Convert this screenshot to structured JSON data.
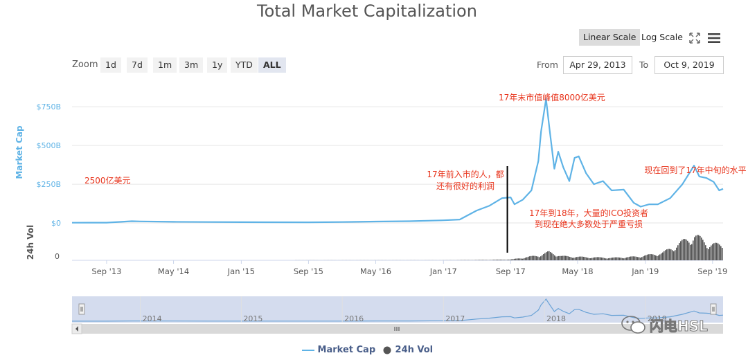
{
  "chart_title": "Total Market Capitalization",
  "scale_buttons": {
    "linear": "Linear Scale",
    "log": "Log Scale"
  },
  "zoom": {
    "label": "Zoom",
    "buttons": [
      "1d",
      "7d",
      "1m",
      "3m",
      "1y",
      "YTD",
      "ALL"
    ],
    "active": "ALL"
  },
  "date_range": {
    "from_label": "From",
    "from_value": "Apr 29, 2013",
    "to_label": "To",
    "to_value": "Oct 9, 2019"
  },
  "legend": {
    "market_cap": "Market Cap",
    "volume": "24h Vol"
  },
  "watermark": "闪电HSL",
  "colors": {
    "market_cap": "#5fb3e6",
    "volume": "#555555",
    "annotation": "#e8341c",
    "navigator_fill": "#ccd6eb"
  },
  "chart_data": {
    "type": "line",
    "title": "Total Market Capitalization",
    "xlabel": "",
    "ylabel": "Market Cap",
    "y2label": "24h Vol",
    "x_ticks": [
      "Sep '13",
      "May '14",
      "Jan '15",
      "Sep '15",
      "May '16",
      "Jan '17",
      "Sep '17",
      "May '18",
      "Jan '19",
      "Sep '19"
    ],
    "y_ticks": [
      "$0",
      "$250B",
      "$500B",
      "$750B"
    ],
    "y2_ticks": [
      "0"
    ],
    "navigator_ticks": [
      "2014",
      "2015",
      "2016",
      "2017",
      "2018",
      "2019"
    ],
    "ylim": [
      0,
      800
    ],
    "series": [
      {
        "name": "Market Cap",
        "unit": "$B",
        "x": [
          "2013-04-29",
          "2013-09-01",
          "2013-12-01",
          "2014-01-01",
          "2014-05-01",
          "2014-09-01",
          "2015-01-01",
          "2015-09-01",
          "2016-01-01",
          "2016-05-01",
          "2016-09-01",
          "2017-01-01",
          "2017-03-01",
          "2017-05-01",
          "2017-06-15",
          "2017-08-01",
          "2017-09-01",
          "2017-09-15",
          "2017-10-15",
          "2017-11-15",
          "2017-12-10",
          "2017-12-20",
          "2018-01-07",
          "2018-01-20",
          "2018-02-06",
          "2018-02-20",
          "2018-03-10",
          "2018-04-01",
          "2018-04-20",
          "2018-05-05",
          "2018-06-01",
          "2018-06-29",
          "2018-08-01",
          "2018-09-01",
          "2018-10-15",
          "2018-11-20",
          "2018-12-15",
          "2019-01-15",
          "2019-02-15",
          "2019-04-01",
          "2019-05-15",
          "2019-06-26",
          "2019-07-15",
          "2019-08-10",
          "2019-09-05",
          "2019-09-25",
          "2019-10-09"
        ],
        "values": [
          1.5,
          2,
          11,
          10,
          7,
          6,
          5,
          4,
          6,
          9,
          11,
          17,
          22,
          80,
          110,
          160,
          165,
          120,
          150,
          210,
          400,
          590,
          800,
          600,
          350,
          460,
          360,
          270,
          420,
          430,
          320,
          250,
          270,
          210,
          215,
          130,
          105,
          120,
          120,
          160,
          250,
          370,
          300,
          290,
          265,
          210,
          220
        ]
      },
      {
        "name": "24h Vol",
        "unit": "$B",
        "x": [
          "2013-04-29",
          "2017-01-01",
          "2017-06-01",
          "2017-09-01",
          "2017-12-15",
          "2018-01-15",
          "2018-03-01",
          "2018-06-01",
          "2018-09-01",
          "2018-12-01",
          "2019-03-01",
          "2019-05-15",
          "2019-06-26",
          "2019-08-15",
          "2019-10-09"
        ],
        "values": [
          0,
          0.5,
          2,
          4,
          25,
          40,
          20,
          15,
          12,
          18,
          35,
          90,
          120,
          80,
          70
        ]
      }
    ],
    "annotations": [
      "2500亿美元",
      "17年末市值峰值8000亿美元",
      "17年前入市的人，都",
      "还有很好的利润",
      "现在回到了17年中旬的水平",
      "17年到18年，大量的ICO投资者",
      "到现在绝大多数处于严重亏损"
    ],
    "grid": true,
    "legend_position": "bottom-center"
  }
}
